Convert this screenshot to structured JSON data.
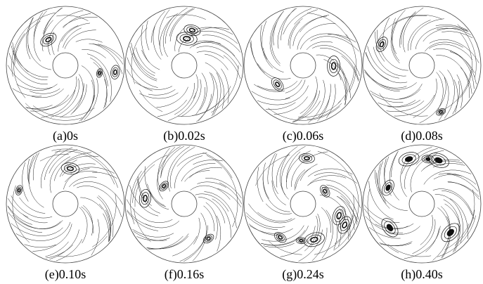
{
  "figure": {
    "panels": [
      {
        "caption": "(a)0s"
      },
      {
        "caption": "(b)0.02s"
      },
      {
        "caption": "(c)0.06s"
      },
      {
        "caption": "(d)0.08s"
      },
      {
        "caption": "(e)0.10s"
      },
      {
        "caption": "(f)0.16s"
      },
      {
        "caption": "(g)0.24s"
      },
      {
        "caption": "(h)0.40s"
      }
    ]
  }
}
